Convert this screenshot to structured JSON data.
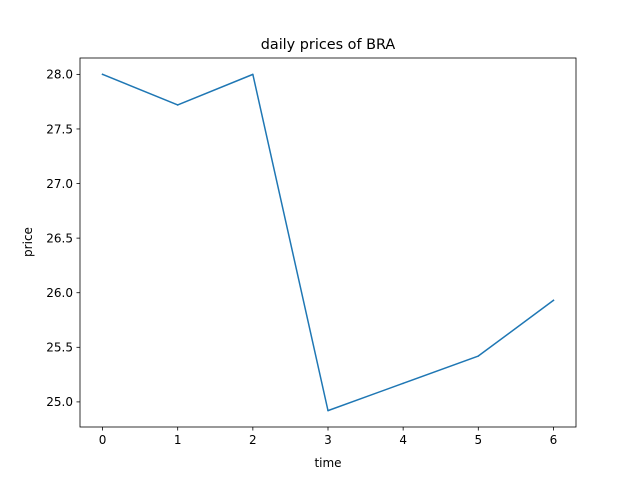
{
  "chart_data": {
    "type": "line",
    "title": "daily prices of BRA",
    "xlabel": "time",
    "ylabel": "price",
    "x": [
      0,
      1,
      2,
      3,
      4,
      5,
      6
    ],
    "series": [
      {
        "values": [
          28.0,
          27.72,
          28.0,
          24.92,
          25.17,
          25.42,
          25.93
        ],
        "color": "#1f77b4"
      }
    ],
    "xticks": [
      0,
      1,
      2,
      3,
      4,
      5,
      6
    ],
    "xtick_labels": [
      "0",
      "1",
      "2",
      "3",
      "4",
      "5",
      "6"
    ],
    "yticks": [
      25.0,
      25.5,
      26.0,
      26.5,
      27.0,
      27.5,
      28.0
    ],
    "ytick_labels": [
      "25.0",
      "25.5",
      "26.0",
      "26.5",
      "27.0",
      "27.5",
      "28.0"
    ],
    "xlim": [
      -0.3,
      6.3
    ],
    "ylim": [
      24.77,
      28.15
    ],
    "grid": false,
    "legend": "none"
  }
}
